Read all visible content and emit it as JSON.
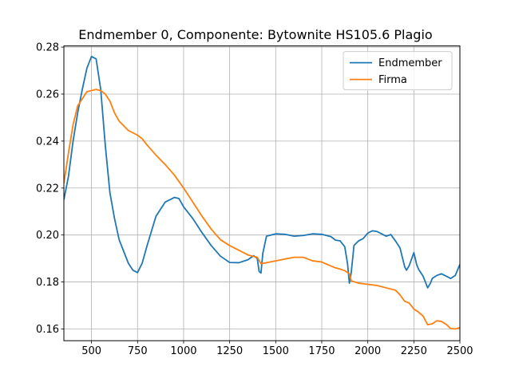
{
  "chart_data": {
    "type": "line",
    "title": "Endmember 0, Componente: Bytownite HS105.6  Plagio",
    "xlabel": "",
    "ylabel": "",
    "xlim": [
      350,
      2500
    ],
    "ylim": [
      0.155,
      0.2805
    ],
    "xticks": [
      500,
      750,
      1000,
      1250,
      1500,
      1750,
      2000,
      2250,
      2500
    ],
    "xtick_labels": [
      "500",
      "750",
      "1000",
      "1250",
      "1500",
      "1750",
      "2000",
      "2250",
      "2500"
    ],
    "yticks": [
      0.16,
      0.18,
      0.2,
      0.22,
      0.24,
      0.26,
      0.28
    ],
    "ytick_labels": [
      "0.16",
      "0.18",
      "0.20",
      "0.22",
      "0.24",
      "0.26",
      "0.28"
    ],
    "grid": true,
    "legend_position": "upper right",
    "series": [
      {
        "name": "Endmember",
        "color": "#1f77b4",
        "x": [
          350,
          375,
          400,
          425,
          450,
          475,
          500,
          525,
          550,
          575,
          600,
          625,
          650,
          700,
          725,
          750,
          775,
          800,
          850,
          900,
          950,
          975,
          1000,
          1050,
          1100,
          1150,
          1200,
          1250,
          1300,
          1350,
          1380,
          1400,
          1410,
          1420,
          1430,
          1450,
          1500,
          1550,
          1600,
          1650,
          1700,
          1750,
          1800,
          1825,
          1850,
          1875,
          1890,
          1900,
          1910,
          1925,
          1950,
          1975,
          2000,
          2025,
          2050,
          2075,
          2100,
          2125,
          2150,
          2175,
          2200,
          2210,
          2225,
          2250,
          2265,
          2275,
          2300,
          2325,
          2340,
          2350,
          2375,
          2400,
          2425,
          2450,
          2475,
          2500
        ],
        "y": [
          0.215,
          0.225,
          0.24,
          0.252,
          0.262,
          0.271,
          0.276,
          0.275,
          0.262,
          0.238,
          0.218,
          0.207,
          0.198,
          0.188,
          0.185,
          0.184,
          0.188,
          0.195,
          0.208,
          0.214,
          0.216,
          0.2155,
          0.212,
          0.207,
          0.201,
          0.1955,
          0.191,
          0.1883,
          0.1882,
          0.1895,
          0.1912,
          0.19,
          0.1845,
          0.1838,
          0.1922,
          0.1995,
          0.2005,
          0.2003,
          0.1995,
          0.1998,
          0.2005,
          0.2003,
          0.1993,
          0.1978,
          0.1975,
          0.195,
          0.1878,
          0.1795,
          0.184,
          0.1955,
          0.1975,
          0.1985,
          0.2008,
          0.2018,
          0.2015,
          0.2005,
          0.1995,
          0.2002,
          0.1975,
          0.1945,
          0.1865,
          0.185,
          0.187,
          0.1925,
          0.1875,
          0.1855,
          0.1825,
          0.1775,
          0.1795,
          0.1815,
          0.1828,
          0.1835,
          0.1825,
          0.1815,
          0.1828,
          0.1875
        ]
      },
      {
        "name": "Firma",
        "color": "#ff7f0e",
        "x": [
          350,
          375,
          400,
          425,
          450,
          475,
          500,
          525,
          550,
          575,
          600,
          625,
          650,
          700,
          750,
          775,
          800,
          850,
          900,
          950,
          1000,
          1050,
          1100,
          1150,
          1200,
          1250,
          1300,
          1350,
          1400,
          1420,
          1450,
          1500,
          1550,
          1600,
          1650,
          1700,
          1750,
          1800,
          1825,
          1850,
          1875,
          1900,
          1910,
          1950,
          2000,
          2050,
          2100,
          2150,
          2175,
          2200,
          2225,
          2250,
          2275,
          2300,
          2325,
          2350,
          2375,
          2400,
          2425,
          2450,
          2475,
          2500
        ],
        "y": [
          0.222,
          0.235,
          0.247,
          0.255,
          0.258,
          0.261,
          0.2615,
          0.262,
          0.2615,
          0.26,
          0.257,
          0.252,
          0.2485,
          0.2445,
          0.2425,
          0.241,
          0.2385,
          0.234,
          0.23,
          0.2255,
          0.22,
          0.214,
          0.208,
          0.2025,
          0.198,
          0.1955,
          0.1935,
          0.1915,
          0.1905,
          0.1878,
          0.1882,
          0.189,
          0.1898,
          0.1905,
          0.1905,
          0.189,
          0.1885,
          0.1868,
          0.186,
          0.1855,
          0.1848,
          0.1835,
          0.1805,
          0.1795,
          0.179,
          0.1785,
          0.1775,
          0.1765,
          0.1745,
          0.1718,
          0.171,
          0.1685,
          0.1672,
          0.1655,
          0.1618,
          0.1622,
          0.1635,
          0.1632,
          0.162,
          0.1602,
          0.16,
          0.1605
        ]
      }
    ]
  }
}
